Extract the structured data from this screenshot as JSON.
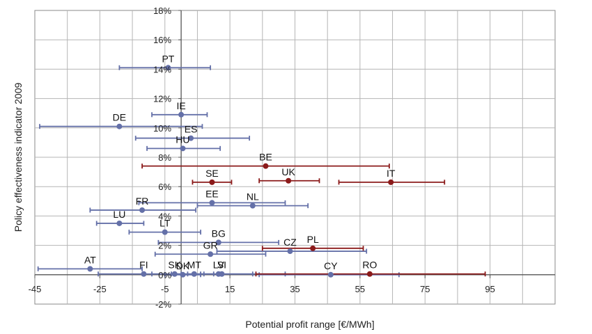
{
  "chart_data": {
    "type": "scatter",
    "title": "",
    "xlabel": "Potential profit range [€/MWh]",
    "ylabel": "Policy effectiveness indicator 2009",
    "xlim": [
      -45,
      115
    ],
    "ylim": [
      -2,
      18
    ],
    "x_ticks": [
      -45,
      -25,
      -5,
      15,
      35,
      55,
      75,
      95
    ],
    "x_tick_labels": [
      "-45",
      "-25",
      "-5",
      "15",
      "35",
      "55",
      "75",
      "95"
    ],
    "y_ticks": [
      -2,
      0,
      2,
      4,
      6,
      8,
      10,
      12,
      14,
      16,
      18
    ],
    "y_tick_labels": [
      "-2%",
      "0%",
      "2%",
      "4%",
      "6%",
      "8%",
      "10%",
      "12%",
      "14%",
      "16%",
      "18%"
    ],
    "x_grid_step": 10,
    "y_grid_step": 2,
    "grid": true,
    "colors": {
      "blue": "#6470a8",
      "red": "#8b1a1a"
    },
    "series": [
      {
        "points": [
          {
            "label": "PT",
            "x": -4,
            "y": 14.1,
            "xmin": -19,
            "xmax": 9
          },
          {
            "label": "IE",
            "x": 0,
            "y": 10.9,
            "xmin": -9,
            "xmax": 8
          },
          {
            "label": "DE",
            "x": -19,
            "y": 10.1,
            "xmin": -43.5,
            "xmax": 6.5
          },
          {
            "label": "ES",
            "x": 3,
            "y": 9.3,
            "xmin": -14,
            "xmax": 21
          },
          {
            "label": "HU",
            "x": 0.5,
            "y": 8.6,
            "xmin": -10.5,
            "xmax": 12
          },
          {
            "label": "EE",
            "x": 9.5,
            "y": 4.9,
            "xmin": -13,
            "xmax": 32
          },
          {
            "label": "NL",
            "x": 22,
            "y": 4.7,
            "xmin": 5,
            "xmax": 39
          },
          {
            "label": "FR",
            "x": -12,
            "y": 4.4,
            "xmin": -28,
            "xmax": 4.5
          },
          {
            "label": "LU",
            "x": -19,
            "y": 3.5,
            "xmin": -26,
            "xmax": -11.5
          },
          {
            "label": "LT",
            "x": -5,
            "y": 2.9,
            "xmin": -16,
            "xmax": 6
          },
          {
            "label": "BG",
            "x": 11.5,
            "y": 2.2,
            "xmin": -7,
            "xmax": 30
          },
          {
            "label": "GR",
            "x": 9,
            "y": 1.4,
            "xmin": -8,
            "xmax": 26
          },
          {
            "label": "CZ",
            "x": 33.5,
            "y": 1.6,
            "xmin": 11,
            "xmax": 57
          },
          {
            "label": "AT",
            "x": -28,
            "y": 0.4,
            "xmin": -44,
            "xmax": -12
          },
          {
            "label": "FI",
            "x": -11.5,
            "y": 0.05,
            "xmin": -25.5,
            "xmax": 0
          },
          {
            "label": "SK",
            "x": -2,
            "y": 0.05,
            "xmin": -9,
            "xmax": 7
          },
          {
            "label": "MT",
            "x": 4,
            "y": 0.05,
            "xmin": -3,
            "xmax": 10
          },
          {
            "label": "DK",
            "x": 0.5,
            "y": 0.0,
            "xmin": -5,
            "xmax": 6
          },
          {
            "label": "LV",
            "x": 11.5,
            "y": 0.05,
            "xmin": 2,
            "xmax": 22
          },
          {
            "label": "SI",
            "x": 12.5,
            "y": 0.05,
            "xmin": 6,
            "xmax": 32
          },
          {
            "label": "CY",
            "x": 46,
            "y": 0.0,
            "xmin": 24,
            "xmax": 67
          }
        ]
      },
      {
        "points": [
          {
            "label": "BE",
            "x": 26,
            "y": 7.4,
            "xmin": -12,
            "xmax": 64
          },
          {
            "label": "SE",
            "x": 9.5,
            "y": 6.3,
            "xmin": 3.5,
            "xmax": 15.5
          },
          {
            "label": "UK",
            "x": 33,
            "y": 6.4,
            "xmin": 24,
            "xmax": 42.5
          },
          {
            "label": "IT",
            "x": 64.5,
            "y": 6.3,
            "xmin": 48.5,
            "xmax": 81
          },
          {
            "label": "PL",
            "x": 40.5,
            "y": 1.8,
            "xmin": 25,
            "xmax": 56
          },
          {
            "label": "RO",
            "x": 58,
            "y": 0.05,
            "xmin": 23,
            "xmax": 93.5
          }
        ]
      }
    ]
  }
}
